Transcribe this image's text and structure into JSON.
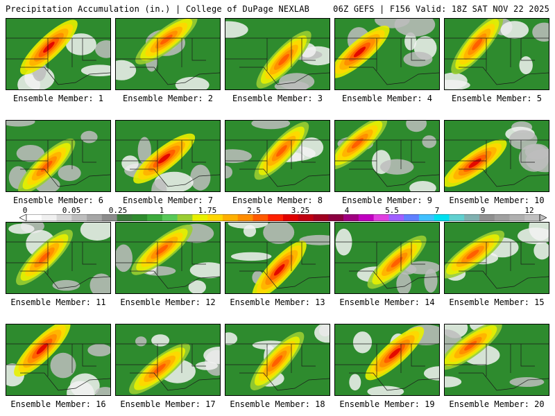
{
  "header": {
    "left": "Precipitation Accumulation (in.) | College of DuPage NEXLAB",
    "right": "06Z GEFS | F156 Valid: 18Z SAT NOV 22 2025"
  },
  "colorbar": {
    "labels": [
      "0",
      "0.05",
      "0.25",
      "1",
      "1.75",
      "2.5",
      "3.25",
      "4",
      "5.5",
      "7",
      "9",
      "12"
    ],
    "colors": [
      "#ffffff",
      "#f0f0f0",
      "#d8d8d8",
      "#bebebe",
      "#a6a6a6",
      "#8c8c8c",
      "#3a7a3a",
      "#2e8b2e",
      "#3caa3c",
      "#58c858",
      "#9acd32",
      "#e8f000",
      "#ffd700",
      "#ffb000",
      "#ff8c00",
      "#ff5a00",
      "#ff2000",
      "#e00000",
      "#c00010",
      "#a00020",
      "#8b0040",
      "#a00080",
      "#c000c0",
      "#e040e0",
      "#a060ff",
      "#6080ff",
      "#40c0ff",
      "#00e0f0",
      "#60d0d0",
      "#80b0b0",
      "#909090",
      "#a0a0a0",
      "#b0b0b0",
      "#c0c0c0"
    ]
  },
  "panels": [
    {
      "caption": "Ensemble Member: 1"
    },
    {
      "caption": "Ensemble Member: 2"
    },
    {
      "caption": "Ensemble Member: 3"
    },
    {
      "caption": "Ensemble Member: 4"
    },
    {
      "caption": "Ensemble Member: 5"
    },
    {
      "caption": "Ensemble Member: 6"
    },
    {
      "caption": "Ensemble Member: 7"
    },
    {
      "caption": "Ensemble Member: 8"
    },
    {
      "caption": "Ensemble Member: 9"
    },
    {
      "caption": "Ensemble Member: 10"
    },
    {
      "caption": "Ensemble Member: 11"
    },
    {
      "caption": "Ensemble Member: 12"
    },
    {
      "caption": "Ensemble Member: 13"
    },
    {
      "caption": "Ensemble Member: 14"
    },
    {
      "caption": "Ensemble Member: 15"
    },
    {
      "caption": "Ensemble Member: 16"
    },
    {
      "caption": "Ensemble Member: 17"
    },
    {
      "caption": "Ensemble Member: 18"
    },
    {
      "caption": "Ensemble Member: 19"
    },
    {
      "caption": "Ensemble Member: 20"
    }
  ]
}
